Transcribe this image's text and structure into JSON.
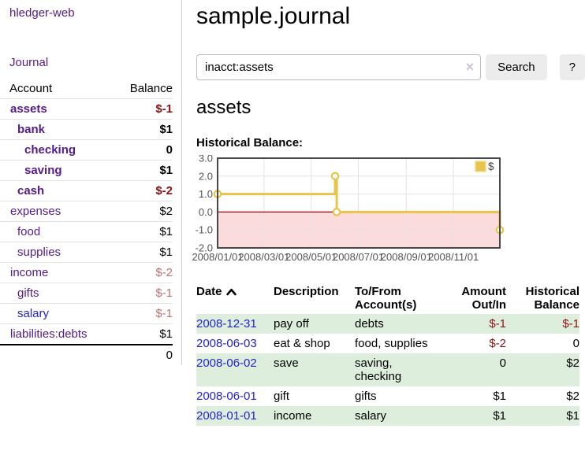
{
  "colors": {
    "link_purple": "#551a8b",
    "link_blue": "#2323cc",
    "negative_strong": "#8f1212",
    "negative_soft": "#c17070",
    "row_green": "#ddeedd",
    "button_gray": "#ececec"
  },
  "sidebar": {
    "brand": "hledger-web",
    "journal_label": "Journal",
    "accounts": {
      "col_account": "Account",
      "col_balance": "Balance",
      "rows": [
        {
          "name": "assets",
          "indent": 1,
          "bold": true,
          "balance": "$-1",
          "balance_style": "neg-strong"
        },
        {
          "name": "bank",
          "indent": 2,
          "bold": true,
          "balance": "$1",
          "balance_style": ""
        },
        {
          "name": "checking",
          "indent": 3,
          "bold": true,
          "balance": "0",
          "balance_style": ""
        },
        {
          "name": "saving",
          "indent": 3,
          "bold": true,
          "balance": "$1",
          "balance_style": ""
        },
        {
          "name": "cash",
          "indent": 2,
          "bold": true,
          "balance": "$-2",
          "balance_style": "neg-strong"
        },
        {
          "name": "expenses",
          "indent": 1,
          "bold": false,
          "balance": "$2",
          "balance_style": ""
        },
        {
          "name": "food",
          "indent": 2,
          "bold": false,
          "balance": "$1",
          "balance_style": ""
        },
        {
          "name": "supplies",
          "indent": 2,
          "bold": false,
          "balance": "$1",
          "balance_style": ""
        },
        {
          "name": "income",
          "indent": 1,
          "bold": false,
          "balance": "$-2",
          "balance_style": "neg-soft"
        },
        {
          "name": "gifts",
          "indent": 2,
          "bold": false,
          "balance": "$-1",
          "balance_style": "neg-soft"
        },
        {
          "name": "salary",
          "indent": 2,
          "bold": false,
          "link_style": "unvisited",
          "balance": "$-1",
          "balance_style": "neg-soft"
        },
        {
          "name": "liabilities:debts",
          "indent": 1,
          "bold": false,
          "balance": "$1",
          "balance_style": ""
        }
      ],
      "total": "0"
    }
  },
  "main": {
    "title": "sample.journal",
    "search": {
      "value": "inacct:assets",
      "clear_icon": "×",
      "button_label": "Search",
      "help_label": "?"
    },
    "register": {
      "heading": "assets",
      "chart_label": "Historical Balance:"
    }
  },
  "chart_data": {
    "type": "line",
    "style": "step",
    "title": "Historical Balance of assets",
    "legend": "$",
    "legend_position": "top-right",
    "grid": true,
    "ylim": [
      -2,
      3
    ],
    "x_range_days": [
      0,
      365
    ],
    "y_ticks": [
      {
        "label": "3.0",
        "value": 3
      },
      {
        "label": "2.0",
        "value": 2
      },
      {
        "label": "1.0",
        "value": 1
      },
      {
        "label": "0.0",
        "value": 0
      },
      {
        "label": "-1.0",
        "value": -1
      },
      {
        "label": "-2.0",
        "value": -2
      }
    ],
    "x_ticks": [
      {
        "label": "2008/01/01",
        "day": 0
      },
      {
        "label": "2008/03/01",
        "day": 60
      },
      {
        "label": "2008/05/01",
        "day": 121
      },
      {
        "label": "2008/07/01",
        "day": 182
      },
      {
        "label": "2008/09/01",
        "day": 244
      },
      {
        "label": "2008/11/01",
        "day": 305
      }
    ],
    "series": [
      {
        "name": "$",
        "points": [
          {
            "date": "2008-01-01",
            "day": 0,
            "value": 1
          },
          {
            "date": "2008-06-01",
            "day": 152,
            "value": 2
          },
          {
            "date": "2008-06-03",
            "day": 154,
            "value": 0
          },
          {
            "date": "2008-12-31",
            "day": 365,
            "value": -1
          }
        ]
      }
    ],
    "line_color": "#e8c44c",
    "marker_fill": "#ffffff",
    "negative_fill": "#fbdbdb",
    "zero_line_color": "#a40000",
    "grid_color": "#e3e3e3",
    "border_color": "#474747",
    "tick_text_color": "#545454"
  },
  "table": {
    "headers": [
      "Date",
      "Description",
      "To/From Account(s)",
      "Amount Out/In",
      "Historical Balance"
    ],
    "sort": {
      "column": "Date",
      "direction": "asc"
    },
    "rows": [
      {
        "date": "2008-12-31",
        "description": "pay off",
        "accounts": "debts",
        "amount": "$-1",
        "amount_negative": true,
        "balance": "$-1",
        "balance_negative": true
      },
      {
        "date": "2008-06-03",
        "description": "eat & shop",
        "accounts": "food, supplies",
        "amount": "$-2",
        "amount_negative": true,
        "balance": "0",
        "balance_negative": false
      },
      {
        "date": "2008-06-02",
        "description": "save",
        "accounts": "saving, checking",
        "amount": "0",
        "amount_negative": false,
        "balance": "$2",
        "balance_negative": false
      },
      {
        "date": "2008-06-01",
        "description": "gift",
        "accounts": "gifts",
        "amount": "$1",
        "amount_negative": false,
        "balance": "$2",
        "balance_negative": false
      },
      {
        "date": "2008-01-01",
        "description": "income",
        "accounts": "salary",
        "amount": "$1",
        "amount_negative": false,
        "balance": "$1",
        "balance_negative": false
      }
    ]
  }
}
